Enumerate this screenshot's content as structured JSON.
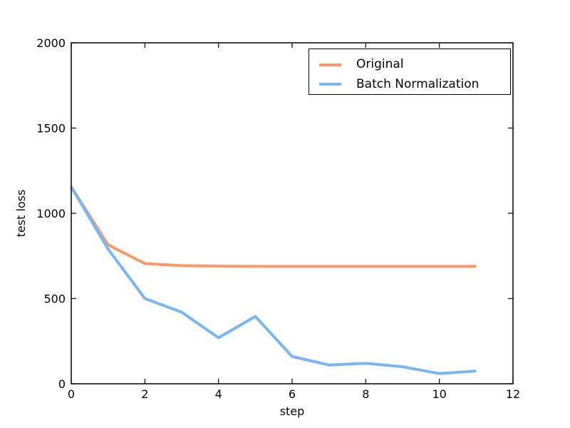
{
  "figure": {
    "background": "#ffffff",
    "frame_color": "#000000"
  },
  "chart_data": {
    "type": "line",
    "title": "",
    "xlabel": "step",
    "ylabel": "test loss",
    "xlim": [
      0,
      12
    ],
    "ylim": [
      0,
      2000
    ],
    "xticks": [
      0,
      2,
      4,
      6,
      8,
      10,
      12
    ],
    "yticks": [
      0,
      500,
      1000,
      1500,
      2000
    ],
    "grid": false,
    "tick_direction": "in",
    "legend_position": "upper right inside",
    "x": [
      0,
      1,
      2,
      3,
      4,
      5,
      6,
      7,
      8,
      9,
      10,
      11
    ],
    "series": [
      {
        "name": "Original",
        "color": "#fb9968",
        "values": [
          1155,
          815,
          705,
          693,
          690,
          689,
          689,
          689,
          689,
          689,
          689,
          689
        ]
      },
      {
        "name": "Batch Normalization",
        "color": "#7ab6f3",
        "values": [
          1155,
          790,
          500,
          420,
          270,
          395,
          160,
          110,
          120,
          100,
          60,
          75
        ]
      }
    ]
  }
}
